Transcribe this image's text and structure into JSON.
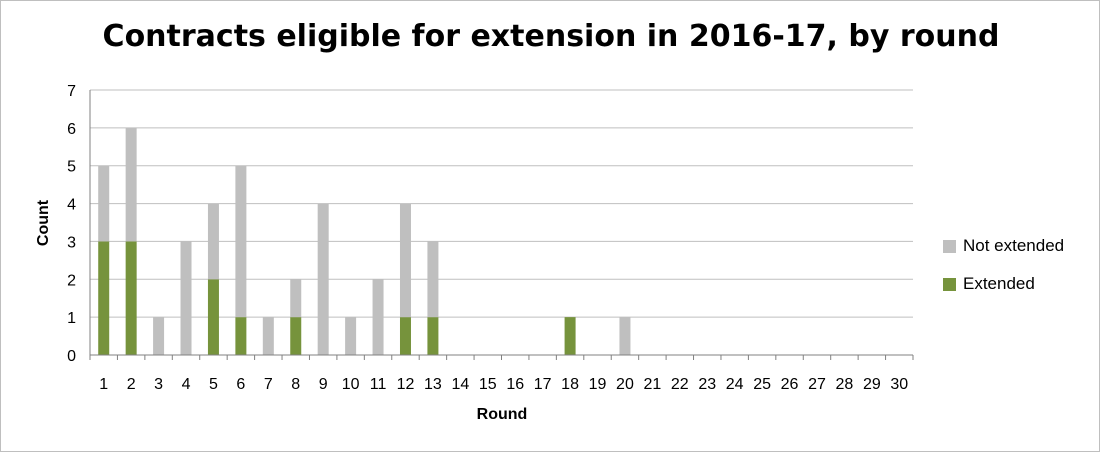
{
  "chart_data": {
    "type": "bar",
    "stacked": true,
    "title": "Contracts eligible for extension in 2016-17, by round",
    "xlabel": "Round",
    "ylabel": "Count",
    "ylim": [
      0,
      7
    ],
    "yticks": [
      0,
      1,
      2,
      3,
      4,
      5,
      6,
      7
    ],
    "grid": true,
    "legend_position": "right",
    "categories": [
      "1",
      "2",
      "3",
      "4",
      "5",
      "6",
      "7",
      "8",
      "9",
      "10",
      "11",
      "12",
      "13",
      "14",
      "15",
      "16",
      "17",
      "18",
      "19",
      "20",
      "21",
      "22",
      "23",
      "24",
      "25",
      "26",
      "27",
      "28",
      "29",
      "30"
    ],
    "series": [
      {
        "name": "Extended",
        "color": "#76933c",
        "values": [
          3,
          3,
          0,
          0,
          2,
          1,
          0,
          1,
          0,
          0,
          0,
          1,
          1,
          0,
          0,
          0,
          0,
          1,
          0,
          0,
          0,
          0,
          0,
          0,
          0,
          0,
          0,
          0,
          0,
          0
        ]
      },
      {
        "name": "Not extended",
        "color": "#bfbfbf",
        "values": [
          2,
          3,
          1,
          3,
          2,
          4,
          1,
          1,
          4,
          1,
          2,
          3,
          2,
          0,
          0,
          0,
          0,
          0,
          0,
          1,
          0,
          0,
          0,
          0,
          0,
          0,
          0,
          0,
          0,
          0
        ]
      }
    ]
  },
  "legend_order": [
    "Not extended",
    "Extended"
  ]
}
